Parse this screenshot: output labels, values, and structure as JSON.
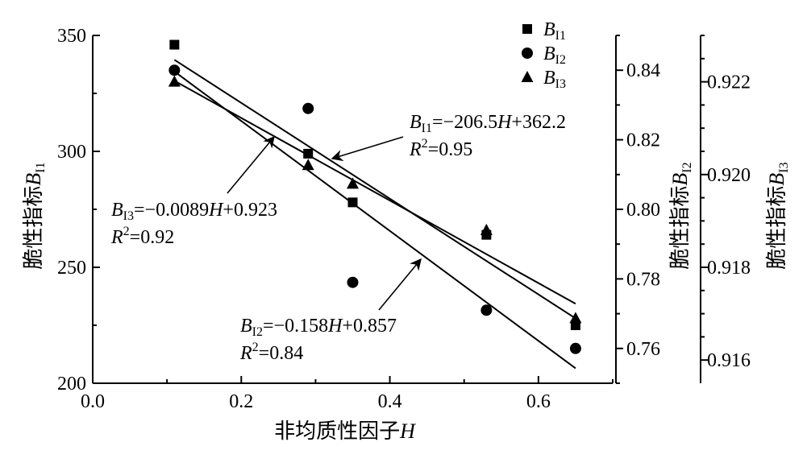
{
  "chart_data": {
    "type": "scatter",
    "xlabel": "非均质性因子",
    "xlabel_var": "H",
    "xlim": [
      0.0,
      0.7
    ],
    "x_ticks": [
      "0.0",
      "0.2",
      "0.4",
      "0.6"
    ],
    "axes": {
      "y1": {
        "label": "脆性指标",
        "var": "B",
        "sub": "I1",
        "lim": [
          200,
          350
        ],
        "ticks": [
          "200",
          "250",
          "300",
          "350"
        ]
      },
      "y2": {
        "label": "脆性指标",
        "var": "B",
        "sub": "I2",
        "lim": [
          0.75,
          0.85
        ],
        "ticks": [
          "0.76",
          "0.78",
          "0.80",
          "0.82",
          "0.84"
        ]
      },
      "y3": {
        "label": "脆性指标",
        "var": "B",
        "sub": "I3",
        "lim": [
          0.9155,
          0.923
        ],
        "ticks": [
          "0.916",
          "0.918",
          "0.920",
          "0.922"
        ]
      }
    },
    "series": [
      {
        "name": "B",
        "sub": "I1",
        "marker": "square",
        "axis": "y1",
        "x": [
          0.11,
          0.29,
          0.35,
          0.53,
          0.65
        ],
        "y": [
          346,
          299,
          278,
          264,
          225
        ],
        "fit": {
          "slope": -206.5,
          "intercept": 362.2,
          "x_range": [
            0.11,
            0.65
          ]
        },
        "equation": {
          "sub": "I1",
          "text": "=−206.5",
          "var": "H",
          "rest": "+362.2",
          "r2": "=0.95"
        }
      },
      {
        "name": "B",
        "sub": "I2",
        "marker": "circle",
        "axis": "y2",
        "x": [
          0.11,
          0.29,
          0.35,
          0.53,
          0.65
        ],
        "y": [
          0.84,
          0.829,
          0.779,
          0.771,
          0.76
        ],
        "fit": {
          "slope": -0.158,
          "intercept": 0.857,
          "x_range": [
            0.11,
            0.65
          ]
        },
        "equation": {
          "sub": "I2",
          "text": "=−0.158",
          "var": "H",
          "rest": "+0.857",
          "r2": "=0.84"
        }
      },
      {
        "name": "B",
        "sub": "I3",
        "marker": "triangle",
        "axis": "y3",
        "x": [
          0.11,
          0.29,
          0.35,
          0.53,
          0.65
        ],
        "y": [
          0.922,
          0.9202,
          0.9198,
          0.9188,
          0.9169
        ],
        "fit": {
          "slope": -0.0089,
          "intercept": 0.923,
          "x_range": [
            0.11,
            0.65
          ]
        },
        "equation": {
          "sub": "I3",
          "text": "=−0.0089",
          "var": "H",
          "rest": "+0.923",
          "r2": "=0.92"
        }
      }
    ],
    "r2_label": "R",
    "r2_sup": "2",
    "legend_position": "top-right",
    "grid": false
  }
}
